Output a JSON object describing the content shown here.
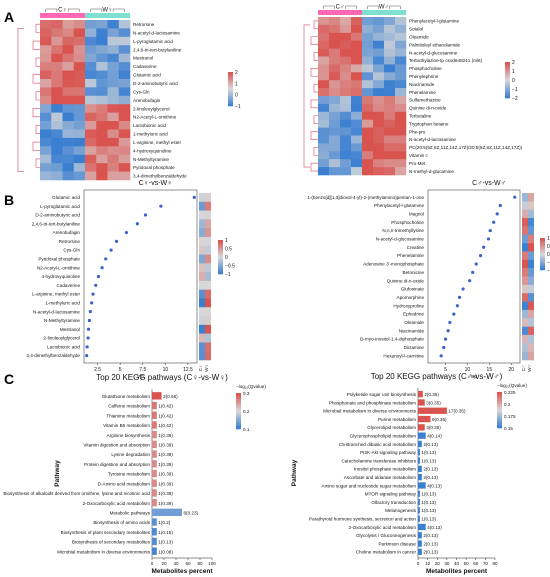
{
  "panels": {
    "a": "A",
    "b": "B",
    "c": "C"
  },
  "colors": {
    "high": "#d9534f",
    "mid": "#d9d9d9",
    "low": "#3b7fd1",
    "group_c": "#ff69b4",
    "group_w": "#7fe0cf",
    "dot": "#3a63c9",
    "bar_red": "#d9534f",
    "bar_blue": "#3b7fd1"
  },
  "chart_data": [
    {
      "type": "heatmap",
      "panel": "A-left",
      "groups": [
        "C♀",
        "W♀"
      ],
      "rows": [
        "Retrorsine",
        "N-acetyl-d-lactosamine",
        "L-pyroglutamic acid",
        "2,4,6-tri-tert-butylaniline",
        "Mestranol",
        "Cadaverine",
        "Glutamic acid",
        "D-2-aminobutyric acid",
        "Cys-Gln",
        "Arenobufagin",
        "2-linoleoylglycerol",
        "N2-Acetyl-L-ornithine",
        "Lactobionic acid",
        "1-methyluric acid",
        "L-arginine, methyl ester",
        "4-hydroxyquinoline",
        "N-Methyltyramine",
        "Pyridoxal phosphate",
        "3,4-dimethylbenzaldehyde"
      ],
      "legend_ticks": [
        "2",
        "1",
        "0",
        "−1"
      ],
      "scale_range": [
        -1.5,
        2
      ]
    },
    {
      "type": "heatmap",
      "panel": "A-right",
      "groups": [
        "C♂",
        "W♂"
      ],
      "rows": [
        "Phenylacetyl-l-glutamine",
        "Sotalol",
        "Oleamide",
        "Palmitoleyl ethanolamide",
        "N-acetyl-d-glucosamine",
        "Terbuthylazine-tp csod648241 (ml6)",
        "Phosphocholine",
        "Phenylephrine",
        "Niacinamide",
        "Phenelamine",
        "Sulfamethazine",
        "Quinine di-n-oxide",
        "Terbutaline",
        "Tryptophan betaine",
        "Phe-pro",
        "N-acetyl-d-lactosamine",
        "PC(20:5(5Z,8Z,11Z,14Z,17Z)/20:5(5Z,8Z,11Z,14Z,17Z))",
        "Vitamin c",
        "Pro-Met",
        "N-methyl-d-glucamine"
      ],
      "legend_ticks": [
        "2",
        "1",
        "0",
        "−1",
        "−2"
      ],
      "scale_range": [
        -2,
        2
      ]
    },
    {
      "type": "scatter",
      "panel": "B-left",
      "title": "C♀-vs-W♀",
      "xlabel": "vip",
      "xticks": [
        2.5,
        5.0,
        7.5,
        10.0,
        12.5
      ],
      "xlim": [
        1,
        13.5
      ],
      "categories": [
        "Glutamic acid",
        "L-pyroglutamic acid",
        "D-2-aminobutyric acid",
        "2,4,6-tri-tert-butylaniline",
        "Arenobufagin",
        "Retrorsine",
        "Cys-Gln",
        "Pyridoxal phosphate",
        "N2-Acetyl-L-ornithine",
        "4-hydroxyquinoline",
        "Cadaverine",
        "L-arginine, methyl ester",
        "1-methyluric acid",
        "N-acetyl-d-lactosamine",
        "N-Methyltyramine",
        "Mestranol",
        "2-linoleoylglycerol",
        "Lactobionic acid",
        "3,4-dimethylbenzaldehyde"
      ],
      "values": [
        13.2,
        9.5,
        7.8,
        6.9,
        5.7,
        4.6,
        4.0,
        3.4,
        3.0,
        2.6,
        2.3,
        2.0,
        1.85,
        1.7,
        1.6,
        1.5,
        1.45,
        1.35,
        1.3
      ],
      "group_labels": [
        "C♀",
        "W♀"
      ],
      "legend_ticks": [
        "1",
        "0.5",
        "0",
        "−0.5",
        "−1"
      ]
    },
    {
      "type": "scatter",
      "panel": "B-right",
      "title": "C♂-vs-W♂",
      "xlabel": "vip",
      "xticks": [
        5,
        10,
        15,
        20
      ],
      "xlim": [
        1,
        22
      ],
      "categories": [
        "1-(benzo[d][1,3]dioxol-4-yl)-2-(methylamino)pentan-1-one",
        "Phenylacetyl-l-glutamine",
        "Magnol",
        "Phosphocholine",
        "N,n,n-trimethyllysine",
        "N-acetyl-d-glucosamine",
        "Creatine",
        "Phenelamine",
        "Adenosine 3'-monophosphate",
        "Betonicine",
        "Quinine di-n-oxide",
        "Glufosinate",
        "Apomorphine",
        "Hydroxyproline",
        "Ephedrine",
        "Oleamide",
        "Niacinamide",
        "D-myo-inositol-1,4-diphosphate",
        "Dictamine",
        "Hexanoyl-l-carnitine"
      ],
      "values": [
        20.8,
        17.5,
        16.8,
        16.0,
        15.2,
        14.8,
        13.7,
        13.0,
        12.0,
        11.2,
        10.5,
        9.0,
        8.2,
        7.7,
        6.9,
        6.0,
        5.6,
        5.0,
        4.6,
        4.0
      ],
      "group_labels": [
        "C♂",
        "W♂"
      ],
      "legend_ticks": [
        "1",
        "0.5",
        "0",
        "−0.5",
        "−1"
      ]
    },
    {
      "type": "bar",
      "panel": "C-left",
      "title": "Top 20 KEGG pathways (C♀-vs-W♀)",
      "xlabel": "Metabolites percent",
      "ylabel": "Pathway",
      "xticks": [
        0,
        20,
        40,
        60,
        80,
        100
      ],
      "xlim": [
        0,
        100
      ],
      "legend_title": "−log₁₀(Qvalue)",
      "legend_ticks": [
        "0.3",
        "0.2",
        "0.1"
      ],
      "categories": [
        "Glutathione metabolism",
        "Caffeine metabolism",
        "Thiamine metabolism",
        "Vitamin B6 metabolism",
        "Arginine biosynthesis",
        "Vitamin digestion and absorption",
        "Lysine degradation",
        "Protein digestion and absorption",
        "Tyrosine metabolism",
        "D-Amino acid metabolism",
        "Biosynthesis of alkaloids derived from ornithine, lysine and nicotinic acid",
        "2-Oxocarboxylic acid metabolism",
        "Metabolic pathways",
        "Biosynthesis of amino acids",
        "Biosynthesis of plant secondary metabolites",
        "Biosynthesis of secondary metabolites",
        "Microbial metabolism in diverse environments"
      ],
      "bar_labels": [
        "2(0.66)",
        "1(0.42)",
        "1(0.42)",
        "1(0.42)",
        "1(0.39)",
        "1(0.39)",
        "1(0.39)",
        "1(0.39)",
        "1(0.39)",
        "1(0.39)",
        "1(0.39)",
        "1(0.39)",
        "6(0.23)",
        "1(0.2)",
        "1(0.15)",
        "1(0.13)",
        "1(0.08)"
      ],
      "values": [
        16,
        8,
        8,
        8,
        8,
        8,
        8,
        8,
        8,
        8,
        8,
        8,
        50,
        8,
        8,
        8,
        8
      ],
      "qvalues": [
        0.34,
        0.3,
        0.3,
        0.3,
        0.28,
        0.28,
        0.28,
        0.28,
        0.28,
        0.28,
        0.28,
        0.28,
        0.1,
        0.08,
        0.07,
        0.07,
        0.06
      ]
    },
    {
      "type": "bar",
      "panel": "C-right",
      "title": "Top 20 KEGG pathways (C♂-vs-W♂)",
      "xlabel": "Metabolites percent",
      "ylabel": "Pathway",
      "xticks": [
        0,
        10,
        20,
        30,
        40,
        50,
        60,
        70,
        80
      ],
      "xlim": [
        0,
        80
      ],
      "legend_title": "−log₁₀(Qvalue)",
      "legend_ticks": [
        "0.225",
        "0.2",
        "0.175",
        "0.15"
      ],
      "categories": [
        "Polyketide sugar unit biosynthesis",
        "Phosphonate and phosphinate metabolism",
        "Microbial metabolism in diverse environments",
        "Purine metabolism",
        "Glycerolipid metabolism",
        "Glycerophospholipid metabolism",
        "C5-Branched dibasic acid metabolism",
        "PI3K-Akt signaling pathway",
        "Catecholamine transferase inhibitors",
        "Inositol phosphate metabolism",
        "Ascorbate and aldarate metabolism",
        "Amino sugar and nucleotide sugar metabolism",
        "MTOR signaling pathway",
        "Olfactory transduction",
        "Melanogenesis",
        "Parathyroid hormone synthesis, secretion and action",
        "2-Oxocarboxylic acid metabolism",
        "Glycolysis / Gluconeogenesis",
        "Parkinson disease",
        "Choline metabolism in cancer"
      ],
      "bar_labels": [
        "2(0.35)",
        "3(0.35)",
        "17(0.35)",
        "6(0.35)",
        "3(0.35)",
        "4(0.14)",
        "2(0.13)",
        "1(0.13)",
        "1(0.13)",
        "2(0.13)",
        "2(0.13)",
        "4(0.13)",
        "1(0.13)",
        "1(0.13)",
        "1(0.13)",
        "1(0.13)",
        "4(0.13)",
        "2(0.13)",
        "2(0.13)",
        "2(0.13)"
      ],
      "values": [
        5,
        7,
        30,
        13,
        7,
        8,
        4,
        2,
        2,
        4,
        4,
        8,
        2,
        2,
        2,
        2,
        8,
        4,
        4,
        4
      ],
      "qvalues": [
        0.225,
        0.225,
        0.225,
        0.225,
        0.225,
        0.15,
        0.15,
        0.15,
        0.15,
        0.15,
        0.15,
        0.15,
        0.15,
        0.15,
        0.15,
        0.15,
        0.15,
        0.15,
        0.15,
        0.15
      ]
    }
  ]
}
